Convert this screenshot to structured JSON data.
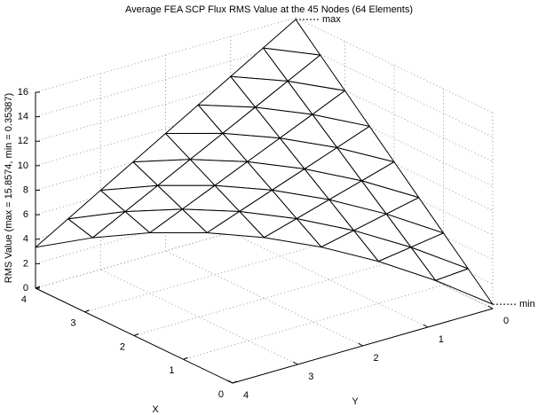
{
  "chart_data": {
    "type": "mesh3d",
    "title": "Average FEA SCP Flux RMS Value at the 45 Nodes (64 Elements)",
    "xlabel": "X",
    "ylabel": "Y",
    "zlabel": "RMS Value (max = 15.8574, min = 0.35387)",
    "x": [
      0,
      0.5,
      0.5,
      1,
      1,
      1,
      1.5,
      1.5,
      1.5,
      1.5,
      2,
      2,
      2,
      2,
      2,
      2.5,
      2.5,
      2.5,
      2.5,
      2.5,
      2.5,
      3,
      3,
      3,
      3,
      3,
      3,
      3,
      3.5,
      3.5,
      3.5,
      3.5,
      3.5,
      3.5,
      3.5,
      3.5,
      4,
      4,
      4,
      4,
      4,
      4,
      4,
      4,
      4
    ],
    "y": [
      0,
      0,
      0.5,
      0,
      0.5,
      1,
      0,
      0.5,
      1,
      1.5,
      0,
      0.5,
      1,
      1.5,
      2,
      0,
      0.5,
      1,
      1.5,
      2,
      2.5,
      0,
      0.5,
      1,
      1.5,
      2,
      2.5,
      3,
      0,
      0.5,
      1,
      1.5,
      2,
      2.5,
      3,
      3.5,
      0,
      0.5,
      1,
      1.5,
      2,
      2.5,
      3,
      3.5,
      4
    ],
    "z": [
      0.35387,
      2.29,
      2.09,
      4.23,
      3.83,
      3.44,
      6.16,
      5.58,
      4.99,
      4.4,
      8.1,
      7.32,
      6.54,
      5.75,
      4.97,
      10.04,
      9.06,
      8.08,
      7.11,
      6.13,
      5.15,
      11.98,
      10.8,
      9.63,
      8.46,
      7.28,
      6.11,
      4.94,
      13.92,
      12.55,
      11.18,
      9.81,
      8.44,
      7.07,
      5.7,
      4.33,
      15.8574,
      14.29,
      12.72,
      11.16,
      9.59,
      8.03,
      6.47,
      4.9,
      3.34
    ],
    "xlim": [
      0,
      4
    ],
    "ylim": [
      0,
      4
    ],
    "zlim": [
      0,
      16
    ],
    "xticks": [
      0,
      1,
      2,
      3,
      4
    ],
    "yticks": [
      0,
      1,
      2,
      3,
      4
    ],
    "zticks": [
      0,
      2,
      4,
      6,
      8,
      10,
      12,
      14,
      16
    ],
    "grid": true,
    "color": "#000000",
    "annotations": [
      "max",
      "min"
    ]
  }
}
